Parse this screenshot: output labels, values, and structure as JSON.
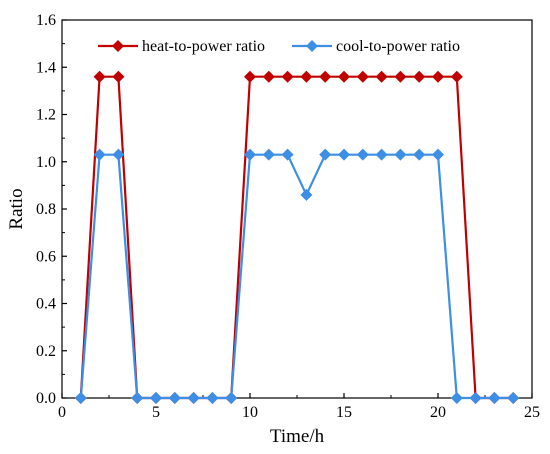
{
  "chart_data": {
    "type": "line",
    "title": "",
    "xlabel": "Time/h",
    "ylabel": "Ratio",
    "xlim": [
      0,
      25
    ],
    "ylim": [
      0.0,
      1.6
    ],
    "xticks": [
      0,
      5,
      10,
      15,
      20,
      25
    ],
    "yticks": [
      0.0,
      0.2,
      0.4,
      0.6,
      0.8,
      1.0,
      1.2,
      1.4,
      1.6
    ],
    "ytick_labels": [
      "0.0",
      "0.2",
      "0.4",
      "0.6",
      "0.8",
      "1.0",
      "1.2",
      "1.4",
      "1.6"
    ],
    "grid": false,
    "legend_position": "top",
    "x": [
      1,
      2,
      3,
      4,
      5,
      6,
      7,
      8,
      9,
      10,
      11,
      12,
      13,
      14,
      15,
      16,
      17,
      18,
      19,
      20,
      21,
      22,
      23,
      24
    ],
    "series": [
      {
        "name": "heat-to-power ratio",
        "color": "#c00000",
        "marker": "diamond",
        "values": [
          0,
          1.36,
          1.36,
          0,
          0,
          0,
          0,
          0,
          0,
          1.36,
          1.36,
          1.36,
          1.36,
          1.36,
          1.36,
          1.36,
          1.36,
          1.36,
          1.36,
          1.36,
          1.36,
          0,
          0,
          0
        ]
      },
      {
        "name": "cool-to-power ratio",
        "color": "#3d8fe6",
        "marker": "diamond",
        "values": [
          0,
          1.03,
          1.03,
          0,
          0,
          0,
          0,
          0,
          0,
          1.03,
          1.03,
          1.03,
          0.86,
          1.03,
          1.03,
          1.03,
          1.03,
          1.03,
          1.03,
          1.03,
          0,
          0,
          0,
          0
        ]
      }
    ]
  }
}
